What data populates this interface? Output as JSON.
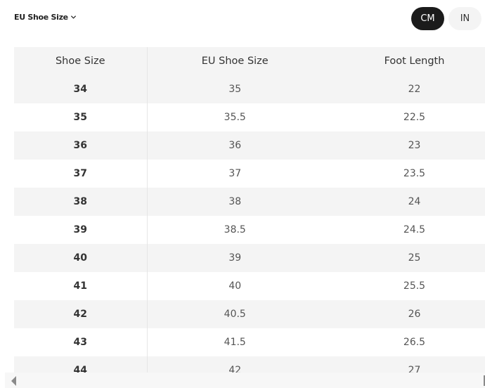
{
  "size_selector": {
    "label": "EU Shoe Size",
    "icon": "chevron-down-icon"
  },
  "unit_toggle": {
    "options": [
      "CM",
      "IN"
    ],
    "selected": "CM"
  },
  "table": {
    "headers": [
      "Shoe Size",
      "EU Shoe Size",
      "Foot Length"
    ],
    "rows": [
      [
        "34",
        "35",
        "22"
      ],
      [
        "35",
        "35.5",
        "22.5"
      ],
      [
        "36",
        "36",
        "23"
      ],
      [
        "37",
        "37",
        "23.5"
      ],
      [
        "38",
        "38",
        "24"
      ],
      [
        "39",
        "38.5",
        "24.5"
      ],
      [
        "40",
        "39",
        "25"
      ],
      [
        "41",
        "40",
        "25.5"
      ],
      [
        "42",
        "40.5",
        "26"
      ],
      [
        "43",
        "41.5",
        "26.5"
      ],
      [
        "44",
        "42",
        "27"
      ]
    ]
  }
}
